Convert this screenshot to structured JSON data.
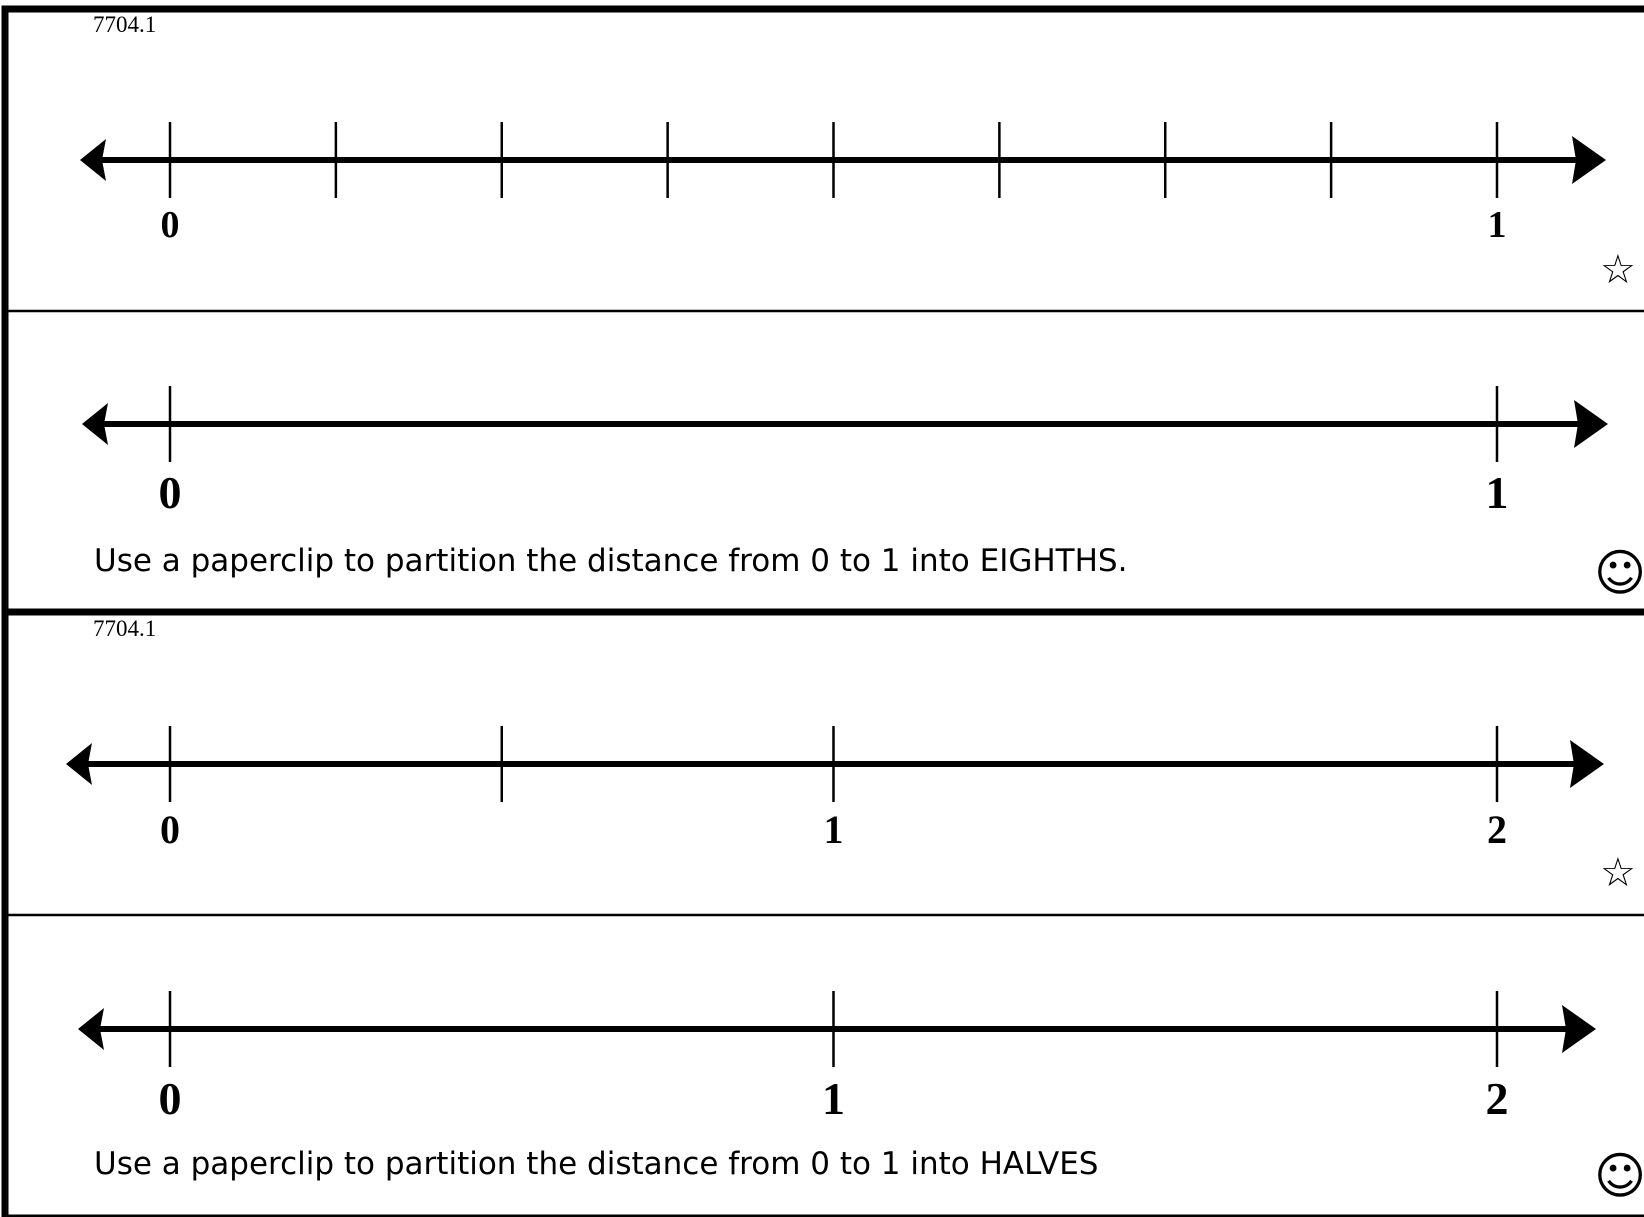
{
  "cards": [
    {
      "code": "7704.1",
      "instruction": "Use a paperclip to partition the distance from 0 to 1 into EIGHTHS.",
      "top_symbol": "☆",
      "bottom_symbol": "☺",
      "symbol_icons": [
        "star-icon",
        "smiley-face-icon"
      ],
      "lines": [
        {
          "start": 0,
          "end": 1,
          "ticks": [
            0,
            0.125,
            0.25,
            0.375,
            0.5,
            0.625,
            0.75,
            0.875,
            1
          ],
          "labels": [
            {
              "value": 0,
              "text": "0"
            },
            {
              "value": 1,
              "text": "1"
            }
          ]
        },
        {
          "start": 0,
          "end": 1,
          "ticks": [
            0,
            1
          ],
          "labels": [
            {
              "value": 0,
              "text": "0"
            },
            {
              "value": 1,
              "text": "1"
            }
          ]
        }
      ]
    },
    {
      "code": "7704.1",
      "instruction": "Use a paperclip to partition the distance from 0 to 1 into HALVES",
      "top_symbol": "☆",
      "bottom_symbol": "☺",
      "symbol_icons": [
        "star-icon",
        "smiley-face-icon"
      ],
      "lines": [
        {
          "start": 0,
          "end": 2,
          "ticks": [
            0,
            0.5,
            1,
            2
          ],
          "labels": [
            {
              "value": 0,
              "text": "0"
            },
            {
              "value": 1,
              "text": "1"
            },
            {
              "value": 2,
              "text": "2"
            }
          ]
        },
        {
          "start": 0,
          "end": 2,
          "ticks": [
            0,
            1,
            2
          ],
          "labels": [
            {
              "value": 0,
              "text": "0"
            },
            {
              "value": 1,
              "text": "1"
            },
            {
              "value": 2,
              "text": "2"
            }
          ]
        }
      ]
    }
  ]
}
